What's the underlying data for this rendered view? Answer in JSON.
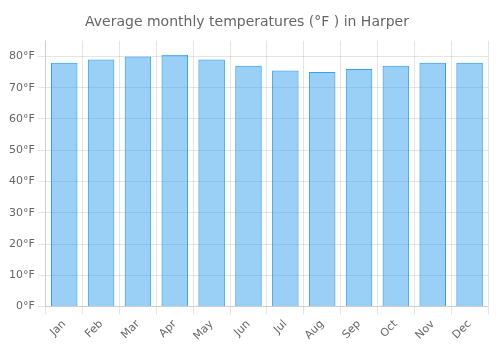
{
  "chart_data": {
    "type": "bar",
    "title": "Average monthly temperatures (°F ) in Harper",
    "categories": [
      "Jan",
      "Feb",
      "Mar",
      "Apr",
      "May",
      "Jun",
      "Jul",
      "Aug",
      "Sep",
      "Oct",
      "Nov",
      "Dec"
    ],
    "values": [
      78,
      79,
      80,
      80.5,
      79,
      77,
      75.5,
      75,
      76,
      77,
      78,
      78
    ],
    "ylim": [
      0,
      85
    ],
    "yticks": [
      {
        "value": 0,
        "label": "0°F"
      },
      {
        "value": 10,
        "label": "10°F"
      },
      {
        "value": 20,
        "label": "20°F"
      },
      {
        "value": 30,
        "label": "30°F"
      },
      {
        "value": 40,
        "label": "40°F"
      },
      {
        "value": 50,
        "label": "50°F"
      },
      {
        "value": 60,
        "label": "60°F"
      },
      {
        "value": 70,
        "label": "70°F"
      },
      {
        "value": 80,
        "label": "80°F"
      }
    ],
    "grid": true
  }
}
